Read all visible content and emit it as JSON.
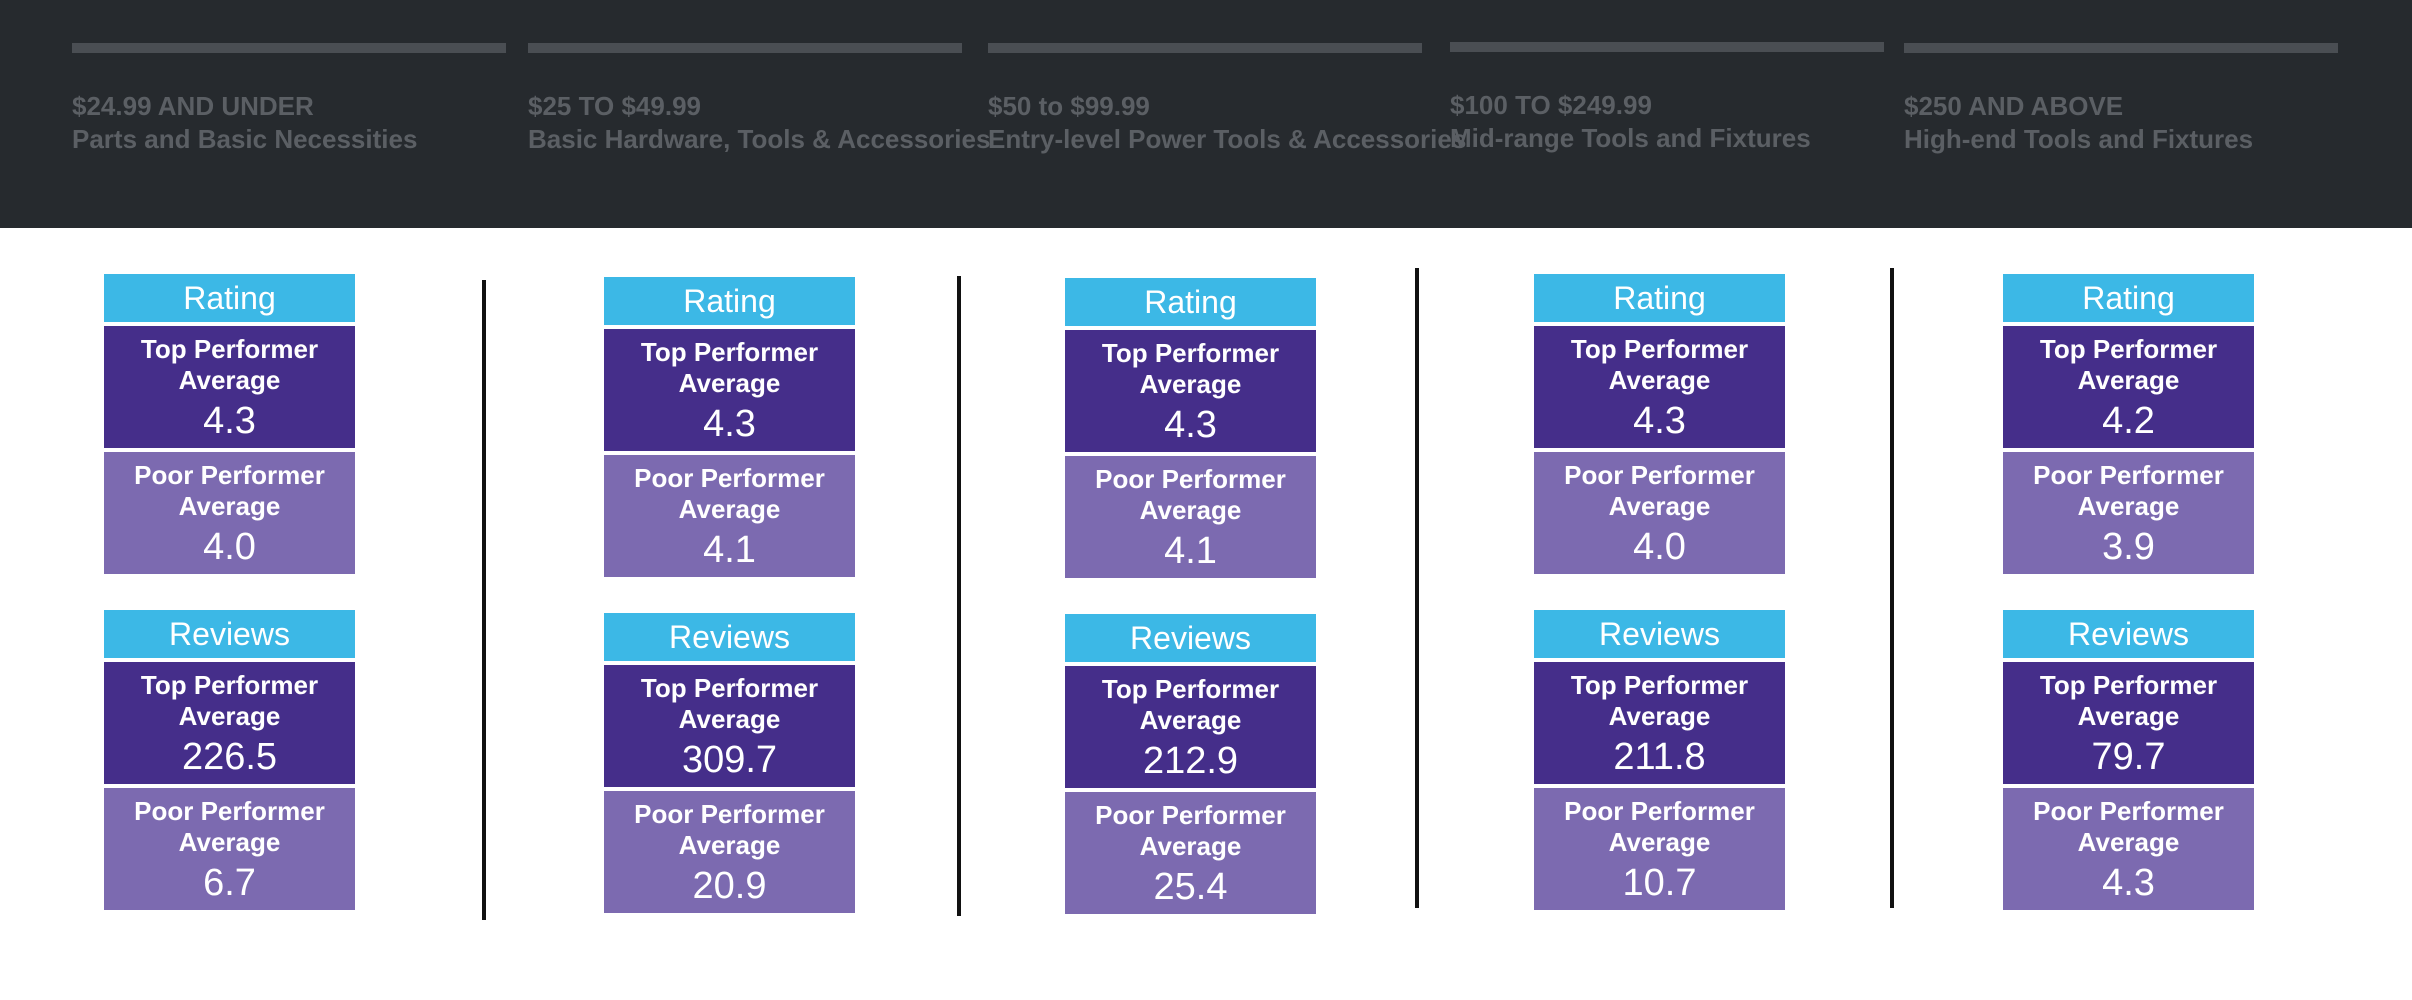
{
  "colors": {
    "header_bg": "#262a2e",
    "header_text": "#5b5f64",
    "title_bar": "#3cb8e6",
    "top_performer": "#452e8a",
    "poor_performer": "#7c6ab0",
    "divider": "#111111"
  },
  "header": {
    "tiers": [
      {
        "price": "$24.99 AND UNDER",
        "label": "Parts and Basic Necessities"
      },
      {
        "price": "$25 TO $49.99",
        "label": "Basic Hardware, Tools & Accessories"
      },
      {
        "price": "$50 to $99.99",
        "label": "Entry-level Power Tools & Accessories"
      },
      {
        "price": "$100 TO $249.99",
        "label": "Mid-range Tools and Fixtures"
      },
      {
        "price": "$250 AND ABOVE",
        "label": "High-end Tools and Fixtures"
      }
    ]
  },
  "labels": {
    "rating": "Rating",
    "reviews": "Reviews",
    "top": "Top Performer Average",
    "poor": "Poor Performer Average"
  },
  "chart_data": {
    "type": "table",
    "categories": [
      "$24.99 AND UNDER",
      "$25 TO $49.99",
      "$50 to $99.99",
      "$100 TO $249.99",
      "$250 AND ABOVE"
    ],
    "columns": [
      {
        "rating": {
          "top": "4.3",
          "poor": "4.0"
        },
        "reviews": {
          "top": "226.5",
          "poor": "6.7"
        }
      },
      {
        "rating": {
          "top": "4.3",
          "poor": "4.1"
        },
        "reviews": {
          "top": "309.7",
          "poor": "20.9"
        }
      },
      {
        "rating": {
          "top": "4.3",
          "poor": "4.1"
        },
        "reviews": {
          "top": "212.9",
          "poor": "25.4"
        }
      },
      {
        "rating": {
          "top": "4.3",
          "poor": "4.0"
        },
        "reviews": {
          "top": "211.8",
          "poor": "10.7"
        }
      },
      {
        "rating": {
          "top": "4.2",
          "poor": "3.9"
        },
        "reviews": {
          "top": "79.7",
          "poor": "4.3"
        }
      }
    ]
  }
}
